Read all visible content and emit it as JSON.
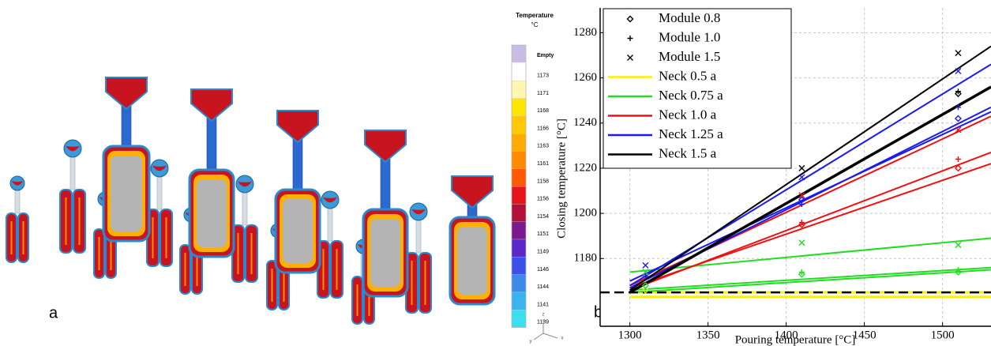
{
  "panel_a": {
    "label": "a",
    "legend_title": "Temperature",
    "legend_unit": "°C",
    "legend_empty": "Empty",
    "empty_color": "#c9bde6",
    "scale_labels": [
      1173,
      1171,
      1168,
      1166,
      1163,
      1161,
      1158,
      1156,
      1154,
      1151,
      1149,
      1146,
      1144,
      1141,
      1139
    ],
    "scale_colors": [
      "#ffffff",
      "#fff6b0",
      "#ffe600",
      "#ffc800",
      "#ffab00",
      "#ff8c00",
      "#ff5a00",
      "#e8141c",
      "#b0103a",
      "#7a1a8c",
      "#5a28c8",
      "#3a50e6",
      "#3a8ae6",
      "#3ab4ee",
      "#3ae0f0"
    ],
    "axis_labels": [
      "z",
      "y",
      "x"
    ]
  },
  "chart_data": {
    "type": "scatter_line",
    "label": "b",
    "x_label": "Pouring temperature [°C]",
    "y_label": "Closing temperature [°C]",
    "xlim": [
      1281,
      1531
    ],
    "ylim": [
      1150,
      1291
    ],
    "xticks": [
      1300,
      1350,
      1400,
      1450,
      1500
    ],
    "yticks": [
      1180,
      1200,
      1220,
      1240,
      1260,
      1280
    ],
    "grid": true,
    "legend_position": "upper left",
    "modules": [
      {
        "name": "Module 0.8",
        "marker": "diamond"
      },
      {
        "name": "Module 1.0",
        "marker": "plus"
      },
      {
        "name": "Module 1.5",
        "marker": "cross"
      }
    ],
    "necks": [
      {
        "name": "Neck 0.5 a",
        "color": "#ffee00",
        "lines": [
          {
            "x": [
              1300,
              1531
            ],
            "values": [
              1163,
              1163
            ]
          },
          {
            "x": [
              1300,
              1531
            ],
            "values": [
              1165,
              1165
            ]
          }
        ],
        "markers": [
          {
            "x": [
              1310
            ],
            "values": [
              1166
            ]
          },
          {
            "x": [],
            "values": []
          },
          {
            "x": [],
            "values": []
          }
        ]
      },
      {
        "name": "Neck 0.75 a",
        "color": "#22dd22",
        "lines": [
          {
            "x": [
              1300,
              1531
            ],
            "values": [
              1174,
              1189
            ]
          },
          {
            "x": [
              1300,
              1531
            ],
            "values": [
              1166,
              1176
            ]
          },
          {
            "x": [
              1300,
              1531
            ],
            "values": [
              1165,
              1175
            ]
          }
        ],
        "markers": [
          {
            "x": [
              1310,
              1410,
              1510
            ],
            "values": [
              1168,
              1173,
              1174
            ]
          },
          {
            "x": [
              1410,
              1510
            ],
            "values": [
              1174,
              1175
            ]
          },
          {
            "x": [
              1310,
              1410,
              1510
            ],
            "values": [
              1174,
              1187,
              1186
            ]
          }
        ]
      },
      {
        "name": "Neck 1.0 a",
        "color": "#ee1111",
        "lines": [
          {
            "x": [
              1300,
              1531
            ],
            "values": [
              1168,
              1243
            ]
          },
          {
            "x": [
              1300,
              1531
            ],
            "values": [
              1166,
              1227
            ]
          },
          {
            "x": [
              1300,
              1531
            ],
            "values": [
              1167,
              1222
            ]
          }
        ],
        "markers": [
          {
            "x": [
              1410,
              1510
            ],
            "values": [
              1195,
              1220
            ]
          },
          {
            "x": [
              1410,
              1510
            ],
            "values": [
              1196,
              1224
            ]
          },
          {
            "x": [
              1410,
              1510
            ],
            "values": [
              1208,
              1237
            ]
          }
        ]
      },
      {
        "name": "Neck 1.25 a",
        "color": "#1a1aee",
        "lines": [
          {
            "x": [
              1300,
              1531
            ],
            "values": [
              1168,
              1266
            ]
          },
          {
            "x": [
              1300,
              1531
            ],
            "values": [
              1167,
              1247
            ]
          },
          {
            "x": [
              1300,
              1531
            ],
            "values": [
              1170,
              1245
            ]
          }
        ],
        "markers": [
          {
            "x": [
              1410,
              1510
            ],
            "values": [
              1206,
              1242
            ]
          },
          {
            "x": [
              1310,
              1410,
              1510
            ],
            "values": [
              1172,
              1204,
              1247
            ]
          },
          {
            "x": [
              1310,
              1410,
              1510
            ],
            "values": [
              1177,
              1216,
              1263
            ]
          }
        ]
      },
      {
        "name": "Neck 1.5 a",
        "color": "#000000",
        "lines": [
          {
            "x": [
              1300,
              1531
            ],
            "values": [
              1166,
              1274
            ]
          },
          {
            "x": [
              1300,
              1531
            ],
            "values": [
              1165,
              1256
            ]
          }
        ],
        "markers": [
          {
            "x": [
              1510
            ],
            "values": [
              1253
            ]
          },
          {
            "x": [
              1510
            ],
            "values": [
              1254
            ]
          },
          {
            "x": [
              1410,
              1510
            ],
            "values": [
              1220,
              1271
            ]
          }
        ]
      }
    ],
    "reference_line": {
      "value": 1165,
      "color": "#000000",
      "dashed": true
    }
  }
}
